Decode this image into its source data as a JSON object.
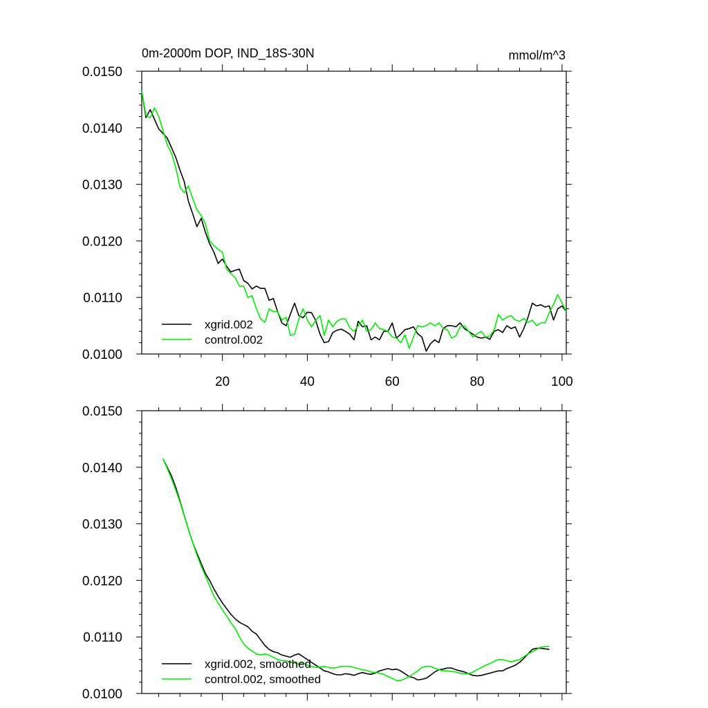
{
  "chart_data": [
    {
      "type": "line",
      "title": "0m-2000m DOP, IND_18S-30N",
      "units": "mmol/m^3",
      "xlim": [
        1,
        101
      ],
      "ylim": [
        0.01,
        0.015
      ],
      "yticks": [
        "0.0150",
        "0.0140",
        "0.0130",
        "0.0120",
        "0.0110",
        "0.0100"
      ],
      "xticks": [
        "20",
        "40",
        "60",
        "80",
        "100"
      ],
      "legend_position": "bottom-left",
      "series": [
        {
          "name": "xgrid.002",
          "color": "#000000",
          "values": [
            0.01465,
            0.01418,
            0.01432,
            0.01415,
            0.01398,
            0.0139,
            0.01382,
            0.01365,
            0.01348,
            0.01325,
            0.01305,
            0.0127,
            0.01248,
            0.01225,
            0.0124,
            0.01215,
            0.01195,
            0.0118,
            0.0116,
            0.01168,
            0.01155,
            0.01145,
            0.01148,
            0.0115,
            0.0113,
            0.01125,
            0.01115,
            0.0112,
            0.01116,
            0.01116,
            0.01095,
            0.01098,
            0.01075,
            0.01055,
            0.0105,
            0.0107,
            0.0109,
            0.01068,
            0.01064,
            0.01074,
            0.01073,
            0.01059,
            0.01035,
            0.0102,
            0.01022,
            0.01038,
            0.01042,
            0.01044,
            0.0104,
            0.01035,
            0.01025,
            0.01058,
            0.01048,
            0.0105,
            0.01025,
            0.0103,
            0.01025,
            0.0104,
            0.0104,
            0.01055,
            0.01028,
            0.01035,
            0.01043,
            0.01045,
            0.01048,
            0.01036,
            0.0103,
            0.01005,
            0.01018,
            0.01025,
            0.0102,
            0.01045,
            0.0105,
            0.0105,
            0.01048,
            0.01055,
            0.01045,
            0.0104,
            0.01035,
            0.0103,
            0.01028,
            0.0103,
            0.01026,
            0.0104,
            0.01043,
            0.01038,
            0.0105,
            0.01045,
            0.01048,
            0.0103,
            0.01045,
            0.01065,
            0.0109,
            0.01085,
            0.01087,
            0.01083,
            0.01085,
            0.0106,
            0.0108,
            0.01085,
            0.01075
          ]
        },
        {
          "name": "control.002",
          "color": "#00ee00",
          "values": [
            0.01465,
            0.01422,
            0.01418,
            0.01435,
            0.0142,
            0.01395,
            0.0137,
            0.01355,
            0.0133,
            0.01295,
            0.01285,
            0.01297,
            0.01275,
            0.01255,
            0.01245,
            0.0123,
            0.012,
            0.01192,
            0.01185,
            0.0118,
            0.0115,
            0.01142,
            0.01135,
            0.0112,
            0.0112,
            0.011,
            0.01103,
            0.0108,
            0.01062,
            0.01056,
            0.0108,
            0.01075,
            0.01075,
            0.0106,
            0.01065,
            0.01033,
            0.01035,
            0.01062,
            0.0108,
            0.0106,
            0.01048,
            0.0106,
            0.01068,
            0.01033,
            0.0106,
            0.01048,
            0.01058,
            0.01062,
            0.01062,
            0.01046,
            0.0104,
            0.0105,
            0.0106,
            0.0104,
            0.01043,
            0.01055,
            0.01045,
            0.01043,
            0.0104,
            0.0103,
            0.01028,
            0.0102,
            0.01034,
            0.0101,
            0.0103,
            0.0105,
            0.01048,
            0.0105,
            0.01055,
            0.0105,
            0.01055,
            0.01045,
            0.01043,
            0.01028,
            0.01032,
            0.01048,
            0.0105,
            0.0104,
            0.0103,
            0.01036,
            0.0104,
            0.0103,
            0.01032,
            0.01042,
            0.0107,
            0.0106,
            0.01065,
            0.01068,
            0.0106,
            0.01058,
            0.01063,
            0.01056,
            0.0106,
            0.0105,
            0.01055,
            0.01055,
            0.01073,
            0.01088,
            0.01105,
            0.0109,
            0.01075
          ]
        }
      ]
    },
    {
      "type": "line",
      "title": "",
      "xlim": [
        1,
        101
      ],
      "ylim": [
        0.01,
        0.015
      ],
      "yticks": [
        "0.0150",
        "0.0140",
        "0.0130",
        "0.0120",
        "0.0110",
        "0.0100"
      ],
      "legend_position": "bottom-left",
      "series": [
        {
          "name": "xgrid.002, smoothed",
          "color": "#000000",
          "x": [
            6,
            7,
            8,
            9,
            10,
            11,
            12,
            13,
            14,
            15,
            16,
            17,
            18,
            19,
            20,
            21,
            22,
            23,
            24,
            25,
            26,
            27,
            28,
            29,
            30,
            31,
            32,
            33,
            34,
            35,
            36,
            37,
            38,
            39,
            40,
            41,
            42,
            43,
            44,
            45,
            46,
            47,
            48,
            49,
            50,
            51,
            52,
            53,
            54,
            55,
            56,
            57,
            58,
            59,
            60,
            61,
            62,
            63,
            64,
            65,
            66,
            67,
            68,
            69,
            70,
            71,
            72,
            73,
            74,
            75,
            76,
            77,
            78,
            79,
            80,
            81,
            82,
            83,
            84,
            85,
            86,
            87,
            88,
            89,
            90,
            91,
            92,
            93,
            94,
            95,
            96,
            97
          ],
          "values": [
            0.01415,
            0.014,
            0.01385,
            0.01365,
            0.0134,
            0.01315,
            0.0129,
            0.01267,
            0.01248,
            0.0123,
            0.01212,
            0.012,
            0.01185,
            0.01172,
            0.0116,
            0.0115,
            0.0114,
            0.01132,
            0.01126,
            0.01122,
            0.01118,
            0.0111,
            0.01105,
            0.01095,
            0.01085,
            0.01078,
            0.01074,
            0.01072,
            0.01068,
            0.01066,
            0.01064,
            0.01068,
            0.0107,
            0.01065,
            0.0106,
            0.01055,
            0.0105,
            0.01045,
            0.0104,
            0.01038,
            0.01035,
            0.01033,
            0.01033,
            0.01035,
            0.01034,
            0.01032,
            0.01035,
            0.01037,
            0.01035,
            0.01034,
            0.01036,
            0.0104,
            0.01042,
            0.01044,
            0.01042,
            0.01043,
            0.0104,
            0.01035,
            0.0103,
            0.01028,
            0.01024,
            0.01025,
            0.01027,
            0.01032,
            0.01038,
            0.01042,
            0.01043,
            0.01045,
            0.01045,
            0.01042,
            0.0104,
            0.01038,
            0.01035,
            0.01032,
            0.01031,
            0.01032,
            0.01034,
            0.01036,
            0.01038,
            0.0104,
            0.0104,
            0.01044,
            0.01047,
            0.0105,
            0.01055,
            0.01062,
            0.0107,
            0.01078,
            0.0108,
            0.0108,
            0.01079,
            0.01078
          ]
        },
        {
          "name": "control.002, smoothed",
          "color": "#00ee00",
          "x": [
            6,
            7,
            8,
            9,
            10,
            11,
            12,
            13,
            14,
            15,
            16,
            17,
            18,
            19,
            20,
            21,
            22,
            23,
            24,
            25,
            26,
            27,
            28,
            29,
            30,
            31,
            32,
            33,
            34,
            35,
            36,
            37,
            38,
            39,
            40,
            41,
            42,
            43,
            44,
            45,
            46,
            47,
            48,
            49,
            50,
            51,
            52,
            53,
            54,
            55,
            56,
            57,
            58,
            59,
            60,
            61,
            62,
            63,
            64,
            65,
            66,
            67,
            68,
            69,
            70,
            71,
            72,
            73,
            74,
            75,
            76,
            77,
            78,
            79,
            80,
            81,
            82,
            83,
            84,
            85,
            86,
            87,
            88,
            89,
            90,
            91,
            92,
            93,
            94,
            95,
            96,
            97
          ],
          "values": [
            0.01415,
            0.01398,
            0.0138,
            0.0136,
            0.01338,
            0.01314,
            0.0129,
            0.01267,
            0.01245,
            0.01225,
            0.01208,
            0.0119,
            0.01172,
            0.0116,
            0.01148,
            0.01137,
            0.01125,
            0.01115,
            0.011,
            0.01088,
            0.0108,
            0.01075,
            0.0107,
            0.01068,
            0.0107,
            0.01068,
            0.01064,
            0.0106,
            0.01058,
            0.01058,
            0.01056,
            0.01054,
            0.01052,
            0.01055,
            0.0105,
            0.01048,
            0.01046,
            0.01047,
            0.01048,
            0.01046,
            0.01045,
            0.01046,
            0.01048,
            0.01048,
            0.01048,
            0.01046,
            0.01044,
            0.01042,
            0.01041,
            0.01038,
            0.01037,
            0.01036,
            0.01034,
            0.0103,
            0.01027,
            0.01023,
            0.01023,
            0.01026,
            0.0103,
            0.01035,
            0.0104,
            0.01046,
            0.01048,
            0.01048,
            0.01045,
            0.01042,
            0.0104,
            0.0104,
            0.01039,
            0.01038,
            0.01036,
            0.01035,
            0.01035,
            0.01038,
            0.01042,
            0.01046,
            0.0105,
            0.01053,
            0.01057,
            0.0106,
            0.0106,
            0.01058,
            0.01056,
            0.01058,
            0.0106,
            0.01065,
            0.0107,
            0.01074,
            0.01078,
            0.01082,
            0.01083,
            0.01083
          ]
        }
      ]
    }
  ]
}
